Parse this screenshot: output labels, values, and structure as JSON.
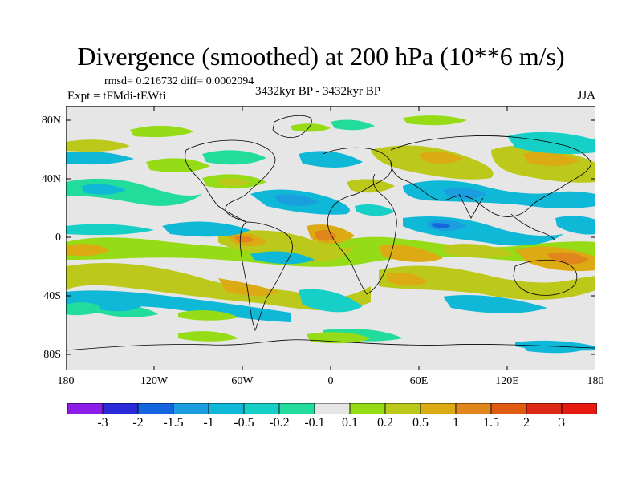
{
  "title": "Divergence (smoothed) at 200 hPa (10**6 m/s)",
  "stats": "rmsd= 0.216732 diff= 0.0002094",
  "experiment": "Expt = tFMdi-tEWti",
  "period": "3432kyr BP - 3432kyr BP",
  "season": "JJA",
  "lat_labels": [
    "80N",
    "40N",
    "0",
    "40S",
    "80S"
  ],
  "lon_labels": [
    "180",
    "120W",
    "60W",
    "0",
    "60E",
    "120E",
    "180"
  ],
  "colorbar": {
    "labels": [
      "-3",
      "-2",
      "-1.5",
      "-1",
      "-0.5",
      "-0.2",
      "-0.1",
      "0.1",
      "0.2",
      "0.5",
      "1",
      "1.5",
      "2",
      "3"
    ],
    "colors": [
      "#8c1ce8",
      "#2a2ad8",
      "#1466de",
      "#1a9ee0",
      "#10b8d8",
      "#16d0c8",
      "#22dc9c",
      "#e6e6e6",
      "#96dc16",
      "#bcc81a",
      "#dcaa12",
      "#e0861c",
      "#e05a10",
      "#dc2a14",
      "#e61a10"
    ]
  },
  "colors": {
    "background": "#e6e6e6",
    "coast": "#000000"
  }
}
